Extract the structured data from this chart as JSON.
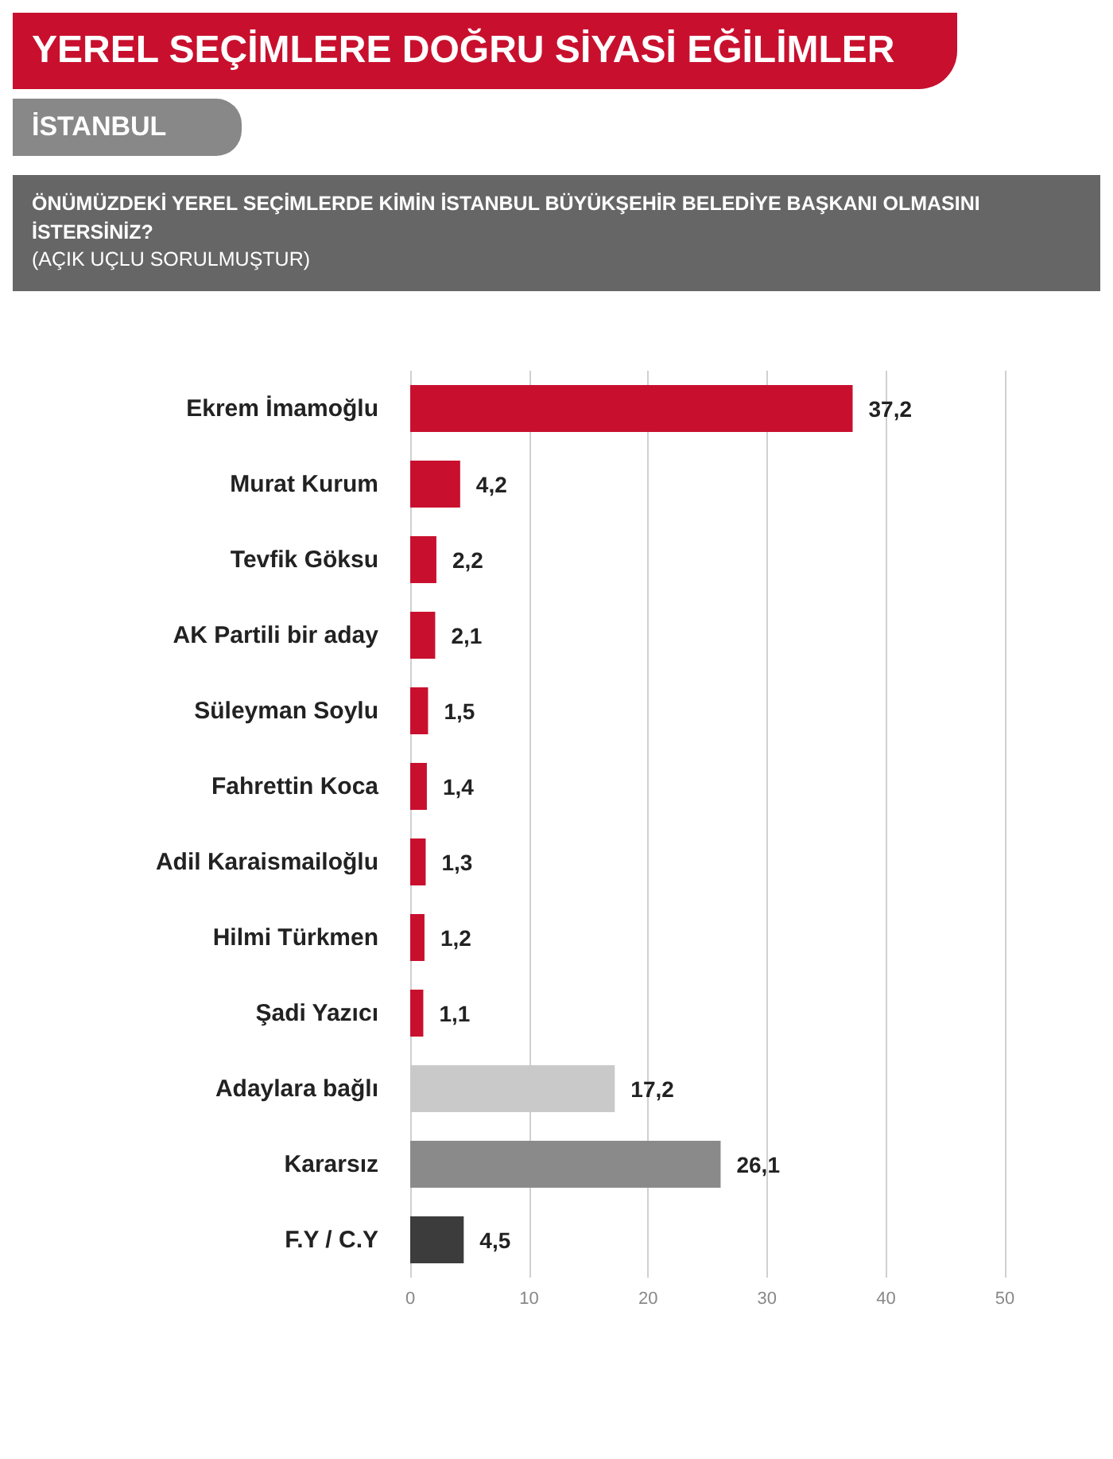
{
  "chart_data": {
    "type": "bar",
    "orientation": "horizontal",
    "title": "YEREL SEÇİMLERE DOĞRU SİYASİ EĞİLİMLER",
    "subtitle": "İSTANBUL",
    "annotations": [
      "ÖNÜMÜZDEKİ YEREL SEÇİMLERDE KİMİN İSTANBUL BÜYÜKŞEHİR BELEDİYE BAŞKANI OLMASINI İSTERSİNİZ?",
      "(AÇIK UÇLU SORULMUŞTUR)"
    ],
    "categories": [
      "Ekrem İmamoğlu",
      "Murat Kurum",
      "Tevfik Göksu",
      "AK Partili bir aday",
      "Süleyman Soylu",
      "Fahrettin Koca",
      "Adil Karaismailoğlu",
      "Hilmi Türkmen",
      "Şadi Yazıcı",
      "Adaylara bağlı",
      "Kararsız",
      "F.Y / C.Y"
    ],
    "values": [
      37.2,
      4.2,
      2.2,
      2.1,
      1.5,
      1.4,
      1.3,
      1.2,
      1.1,
      17.2,
      26.1,
      4.5
    ],
    "colors": [
      "#c8102e",
      "#c8102e",
      "#c8102e",
      "#c8102e",
      "#c8102e",
      "#c8102e",
      "#c8102e",
      "#c8102e",
      "#c8102e",
      "#c9c9c9",
      "#8a8a8a",
      "#3c3c3c"
    ],
    "value_labels": [
      "37,2",
      "4,2",
      "2,2",
      "2,1",
      "1,5",
      "1,4",
      "1,3",
      "1,2",
      "1,1",
      "17,2",
      "26,1",
      "4,5"
    ],
    "xlim": [
      0,
      50
    ],
    "xticks": [
      0,
      10,
      20,
      30,
      40,
      50
    ],
    "grid": "x"
  }
}
